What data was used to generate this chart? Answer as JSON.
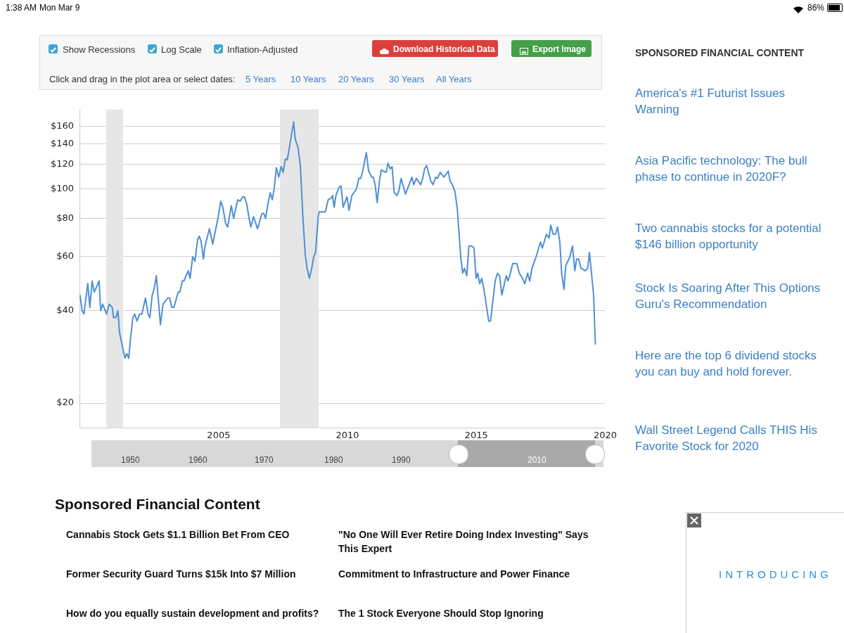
{
  "chart_data": {
    "type": "line",
    "log": "y",
    "grid": "y",
    "legend": false,
    "marker": "none",
    "line_style": "solid",
    "color": "#4f90d4",
    "x": [
      1999.62,
      1999.7,
      1999.77,
      1999.92,
      2000.0,
      2000.09,
      2000.17,
      2000.36,
      2000.42,
      2000.5,
      2000.65,
      2000.75,
      2000.87,
      2000.92,
      2001.01,
      2001.09,
      2001.15,
      2001.25,
      2001.36,
      2001.43,
      2001.51,
      2001.57,
      2001.67,
      2001.74,
      2001.83,
      2001.93,
      2002.02,
      2002.16,
      2002.26,
      2002.33,
      2002.42,
      2002.49,
      2002.58,
      2002.74,
      2002.84,
      2003.02,
      2003.1,
      2003.18,
      2003.26,
      2003.43,
      2003.49,
      2003.59,
      2003.65,
      2003.82,
      2003.89,
      2003.99,
      2004.08,
      2004.18,
      2004.25,
      2004.32,
      2004.41,
      2004.47,
      2004.64,
      2004.77,
      2004.97,
      2005.08,
      2005.16,
      2005.27,
      2005.35,
      2005.49,
      2005.58,
      2005.74,
      2005.83,
      2005.93,
      2006.0,
      2006.09,
      2006.18,
      2006.25,
      2006.35,
      2006.51,
      2006.68,
      2006.75,
      2006.82,
      2006.91,
      2007.0,
      2007.08,
      2007.16,
      2007.24,
      2007.33,
      2007.42,
      2007.5,
      2007.59,
      2007.66,
      2007.73,
      2007.82,
      2007.91,
      2007.97,
      2008.08,
      2008.17,
      2008.27,
      2008.36,
      2008.43,
      2008.52,
      2008.61,
      2008.69,
      2008.76,
      2008.86,
      2008.9,
      2009.14,
      2009.25,
      2009.36,
      2009.42,
      2009.48,
      2009.55,
      2009.67,
      2009.75,
      2009.83,
      2009.98,
      2010.06,
      2010.17,
      2010.25,
      2010.35,
      2010.44,
      2010.51,
      2010.58,
      2010.73,
      2010.82,
      2010.94,
      2011.0,
      2011.08,
      2011.15,
      2011.24,
      2011.31,
      2011.5,
      2011.57,
      2011.66,
      2011.73,
      2011.81,
      2011.92,
      2011.99,
      2012.08,
      2012.25,
      2012.5,
      2012.57,
      2012.67,
      2012.84,
      2012.92,
      2012.99,
      2013.07,
      2013.23,
      2013.32,
      2013.42,
      2013.49,
      2013.6,
      2013.74,
      2013.91,
      2013.98,
      2014.07,
      2014.17,
      2014.26,
      2014.4,
      2014.47,
      2014.54,
      2014.63,
      2014.71,
      2014.82,
      2014.91,
      2014.99,
      2015.05,
      2015.13,
      2015.21,
      2015.31,
      2015.48,
      2015.55,
      2015.73,
      2015.82,
      2015.9,
      2015.99,
      2016.16,
      2016.23,
      2016.32,
      2016.41,
      2016.49,
      2016.57,
      2016.67,
      2016.79,
      2016.88,
      2016.99,
      2017.07,
      2017.16,
      2017.32,
      2017.49,
      2017.56,
      2017.72,
      2017.82,
      2017.89,
      2017.98,
      2018.07,
      2018.15,
      2018.24,
      2018.31,
      2018.4,
      2018.47,
      2018.63,
      2018.73,
      2018.82,
      2018.89,
      2018.97,
      2019.06,
      2019.22,
      2019.32,
      2019.39,
      2019.55,
      2019.62
    ],
    "values": [
      45,
      40,
      39,
      49,
      41,
      50,
      46,
      50,
      40,
      42,
      39,
      42,
      41,
      38,
      38,
      40,
      34,
      31,
      28,
      29,
      28,
      32,
      38,
      39,
      37,
      39,
      39,
      44,
      39,
      38,
      45,
      47,
      52,
      36,
      42,
      44,
      44,
      41,
      41,
      46,
      46,
      50,
      50,
      54,
      51,
      60,
      58,
      68,
      70,
      67,
      59,
      65,
      74,
      66,
      80,
      91,
      87,
      77,
      75,
      88,
      80,
      92,
      91,
      94,
      94,
      89,
      80,
      75,
      81,
      74,
      83,
      83,
      80,
      89,
      97,
      92,
      101,
      117,
      109,
      118,
      113,
      125,
      124,
      134,
      149,
      165,
      145,
      136,
      119,
      80,
      61,
      55,
      51,
      55,
      60,
      62,
      81,
      84,
      84,
      92,
      93,
      95,
      87,
      95,
      101,
      102,
      87,
      94,
      85,
      95,
      97,
      100,
      108,
      108,
      113,
      131,
      114,
      109,
      109,
      102,
      90,
      106,
      115,
      113,
      121,
      116,
      118,
      97,
      95,
      98,
      108,
      96,
      109,
      103,
      108,
      103,
      108,
      116,
      119,
      106,
      103,
      109,
      108,
      113,
      109,
      114,
      106,
      103,
      98,
      86,
      59,
      53,
      55,
      52,
      65,
      65,
      64,
      51,
      53,
      49,
      51,
      46,
      37,
      37,
      50,
      53,
      52,
      45,
      52,
      50,
      53,
      57,
      57,
      57,
      53,
      51,
      49,
      53,
      50,
      55,
      60,
      67,
      64,
      71,
      69,
      76,
      71,
      71,
      75,
      67,
      53,
      47,
      56,
      60,
      65,
      54,
      59,
      59,
      55,
      54,
      55,
      62,
      45,
      31
    ],
    "xlim": [
      1999.6,
      2020
    ],
    "xticks": [
      2005,
      2010,
      2015,
      2020
    ],
    "ylim": [
      16.6,
      181
    ],
    "yticks": [
      {
        "value": 20,
        "label": "$20"
      },
      {
        "value": 40,
        "label": "$40"
      },
      {
        "value": 60,
        "label": "$60"
      },
      {
        "value": 80,
        "label": "$80"
      },
      {
        "value": 100,
        "label": "$100"
      },
      {
        "value": 120,
        "label": "$120"
      },
      {
        "value": 140,
        "label": "$140"
      },
      {
        "value": 160,
        "label": "$160"
      }
    ],
    "bands": [
      {
        "axis": "x",
        "from": 2000.64,
        "to": 2001.29,
        "color": "#e6e6e6"
      },
      {
        "axis": "x",
        "from": 2007.38,
        "to": 2008.88,
        "color": "#e6e6e6"
      }
    ],
    "annotations": [
      "1:38 AM",
      "Mon Mar 9",
      "86%",
      "Show Recessions",
      "Log Scale",
      "Inflation-Adjusted",
      "Download Historical Data",
      "Export Image",
      "Click and drag in the plot area or select dates:",
      "5 Years",
      "10 Years",
      "20 Years",
      "30 Years",
      "All Years",
      "1950",
      "1960",
      "1970",
      "1980",
      "1990",
      "2010",
      "SPONSORED FINANCIAL CONTENT",
      "America's #1 Futurist Issues Warning",
      "Asia Pacific technology: The bull phase to continue in 2020F?",
      "Two cannabis stocks for a potential $146 billion opportunity",
      "Stock Is Soaring After This Options Guru's Recommendation",
      "Here are the top 6 dividend stocks you can buy and hold forever.",
      "Wall Street Legend Calls THIS His Favorite Stock for 2020",
      "Sponsored Financial Content",
      "Cannabis Stock Gets $1.1 Billion Bet From CEO",
      "\"No One Will Ever Retire Doing Index Investing\" Says This Expert",
      "Former Security Guard Turns $15k Into $7 Million",
      "Commitment to Infrastructure and Power Finance",
      "How do you equally sustain development and profits?",
      "The 1 Stock Everyone Should Stop Ignoring",
      "INTRODUCING"
    ]
  }
}
